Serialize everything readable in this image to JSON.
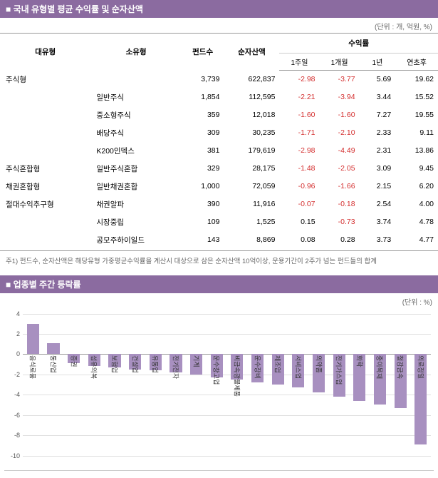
{
  "section1": {
    "title": "■ 국내 유형별 평균 수익률 및 순자산액",
    "unit": "(단위 : 개, 억원, %)",
    "headers": {
      "col1": "대유형",
      "col2": "소유형",
      "col3": "펀드수",
      "col4": "순자산액",
      "col5": "수익률",
      "sub1": "1주일",
      "sub2": "1개월",
      "sub3": "1년",
      "sub4": "연초후"
    },
    "rows": [
      {
        "cat": "주식형",
        "sub": "",
        "funds": "3,739",
        "nav": "622,837",
        "w1": "-2.98",
        "m1": "-3.77",
        "y1": "5.69",
        "ytd": "19.62",
        "neg": [
          true,
          true,
          false,
          false
        ]
      },
      {
        "cat": "",
        "sub": "일반주식",
        "funds": "1,854",
        "nav": "112,595",
        "w1": "-2.21",
        "m1": "-3.94",
        "y1": "3.44",
        "ytd": "15.52",
        "neg": [
          true,
          true,
          false,
          false
        ]
      },
      {
        "cat": "",
        "sub": "중소형주식",
        "funds": "359",
        "nav": "12,018",
        "w1": "-1.60",
        "m1": "-1.60",
        "y1": "7.27",
        "ytd": "19.55",
        "neg": [
          true,
          true,
          false,
          false
        ]
      },
      {
        "cat": "",
        "sub": "배당주식",
        "funds": "309",
        "nav": "30,235",
        "w1": "-1.71",
        "m1": "-2.10",
        "y1": "2.33",
        "ytd": "9.11",
        "neg": [
          true,
          true,
          false,
          false
        ]
      },
      {
        "cat": "",
        "sub": "K200인덱스",
        "funds": "381",
        "nav": "179,619",
        "w1": "-2.98",
        "m1": "-4.49",
        "y1": "2.31",
        "ytd": "13.86",
        "neg": [
          true,
          true,
          false,
          false
        ]
      },
      {
        "cat": "주식혼합형",
        "sub": "일반주식혼합",
        "funds": "329",
        "nav": "28,175",
        "w1": "-1.48",
        "m1": "-2.05",
        "y1": "3.09",
        "ytd": "9.45",
        "neg": [
          true,
          true,
          false,
          false
        ]
      },
      {
        "cat": "채권혼합형",
        "sub": "일반채권혼합",
        "funds": "1,000",
        "nav": "72,059",
        "w1": "-0.96",
        "m1": "-1.66",
        "y1": "2.15",
        "ytd": "6.20",
        "neg": [
          true,
          true,
          false,
          false
        ]
      },
      {
        "cat": "절대수익추구형",
        "sub": "채권알파",
        "funds": "390",
        "nav": "11,916",
        "w1": "-0.07",
        "m1": "-0.18",
        "y1": "2.54",
        "ytd": "4.00",
        "neg": [
          true,
          true,
          false,
          false
        ]
      },
      {
        "cat": "",
        "sub": "시장중립",
        "funds": "109",
        "nav": "1,525",
        "w1": "0.15",
        "m1": "-0.73",
        "y1": "3.74",
        "ytd": "4.78",
        "neg": [
          false,
          true,
          false,
          false
        ]
      },
      {
        "cat": "",
        "sub": "공모주하이일드",
        "funds": "143",
        "nav": "8,869",
        "w1": "0.08",
        "m1": "0.28",
        "y1": "3.73",
        "ytd": "4.77",
        "neg": [
          false,
          false,
          false,
          false
        ]
      }
    ],
    "footnote": "주1) 펀드수, 순자산액은 해당유형 가중평균수익률을 계산시 대상으로 삼은 순자산액 10억이상, 운용기간이 2주가 넘는 펀드들의 합계"
  },
  "section2": {
    "title": "■ 업종별 주간 등락률",
    "unit": "(단위 : %)",
    "chart": {
      "type": "bar",
      "ylim": [
        -10,
        4
      ],
      "yticks": [
        4,
        2,
        0,
        -2,
        -4,
        -6,
        -8,
        -10
      ],
      "bar_color": "#a890c0",
      "grid_color": "#e0e0e0",
      "zero_color": "#999999",
      "background_color": "#ffffff",
      "categories": [
        "음식료품",
        "통신업",
        "증권",
        "섬유의복",
        "보험업",
        "건설업",
        "유통업",
        "전기전자",
        "기계",
        "운수창고업",
        "비금속광물제품",
        "운수장비",
        "제조업",
        "서비스업",
        "의약품",
        "전기가스업",
        "화학",
        "종이목재",
        "철강금속",
        "의료정밀"
      ],
      "values": [
        3.0,
        1.1,
        -0.9,
        -1.2,
        -1.3,
        -1.5,
        -1.6,
        -1.8,
        -2.0,
        -2.3,
        -2.5,
        -2.8,
        -3.0,
        -3.3,
        -3.8,
        -4.2,
        -4.6,
        -5.0,
        -5.3,
        -8.9
      ]
    }
  }
}
